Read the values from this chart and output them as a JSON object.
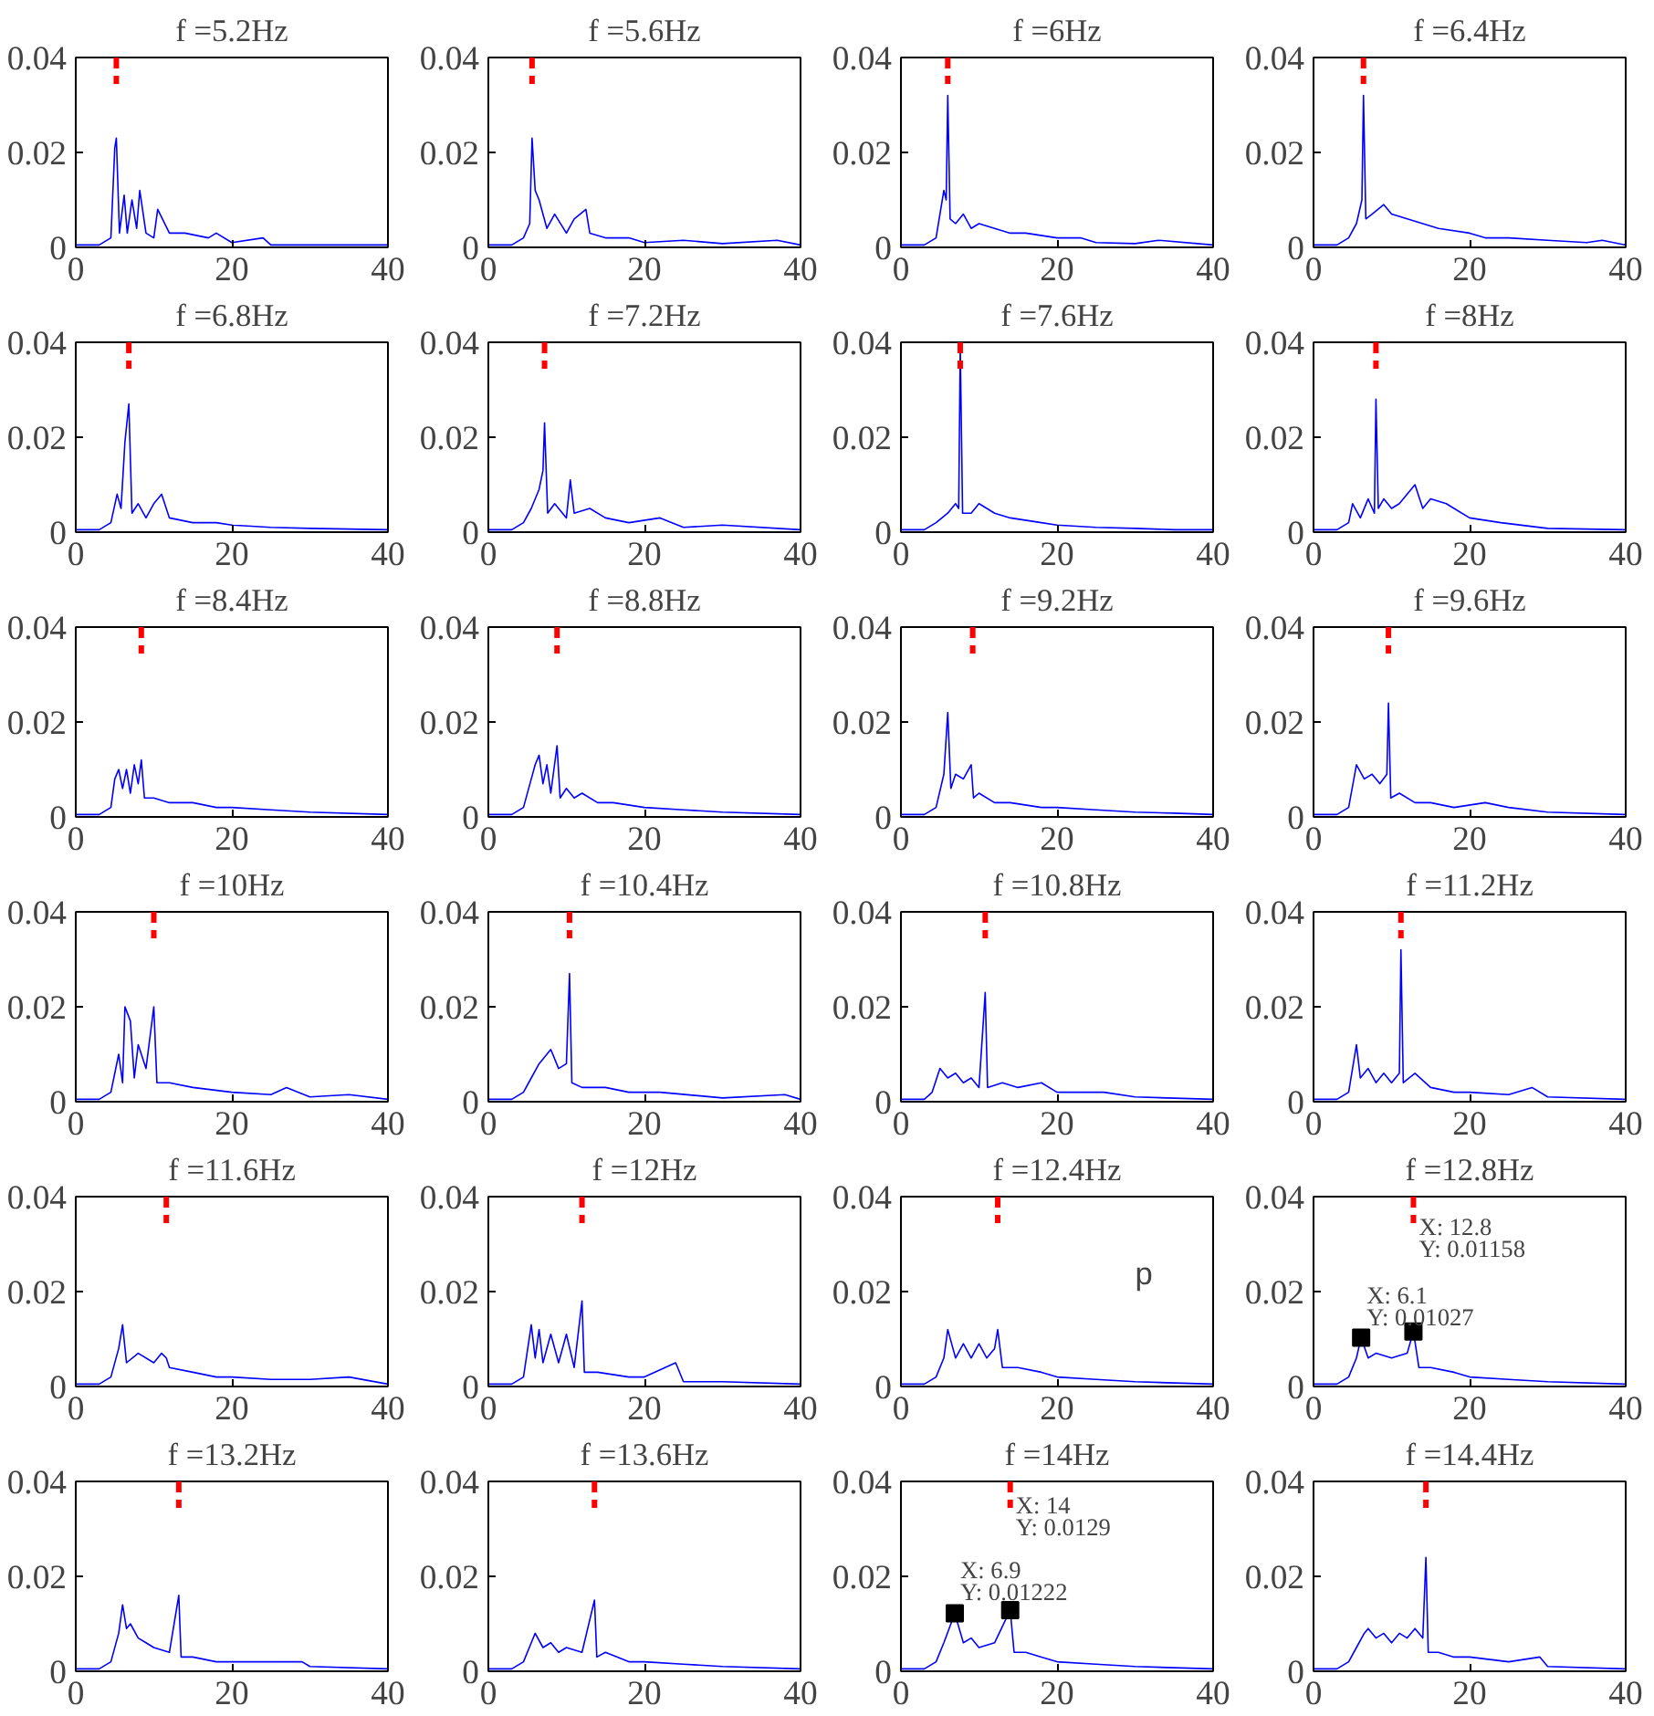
{
  "chart_data": [
    {
      "type": "line",
      "title": "f =5.2Hz",
      "x": [
        0,
        3,
        4.5,
        5,
        5.2,
        5.6,
        6.2,
        6.6,
        7.2,
        7.8,
        8.2,
        9,
        10,
        10.5,
        12,
        14,
        17,
        18,
        20,
        24,
        25,
        30,
        40
      ],
      "series": [
        {
          "color": "#0000ff",
          "values": [
            0.0005,
            0.0005,
            0.002,
            0.021,
            0.023,
            0.003,
            0.011,
            0.003,
            0.01,
            0.004,
            0.012,
            0.003,
            0.002,
            0.008,
            0.003,
            0.003,
            0.002,
            0.003,
            0.001,
            0.002,
            0.0005,
            0.0005,
            0.0005
          ]
        }
      ],
      "xlim": [
        0,
        40
      ],
      "ylim": [
        0,
        0.04
      ],
      "xticks": [
        0,
        20,
        40
      ],
      "yticks": [
        0,
        0.02,
        0.04
      ],
      "ref_lines": [
        {
          "axis": "x",
          "value": 5.2,
          "color": "#ff0000",
          "line_style": "dashed"
        }
      ]
    },
    {
      "type": "line",
      "title": "f =5.6Hz",
      "x": [
        0,
        3,
        4.5,
        5.3,
        5.6,
        6,
        6.5,
        7.5,
        8.5,
        10,
        11,
        12.5,
        13,
        15,
        18,
        20,
        25,
        30,
        37,
        40
      ],
      "series": [
        {
          "color": "#0000ff",
          "values": [
            0.0005,
            0.0005,
            0.002,
            0.005,
            0.023,
            0.012,
            0.01,
            0.004,
            0.007,
            0.003,
            0.006,
            0.008,
            0.003,
            0.002,
            0.002,
            0.001,
            0.0015,
            0.0008,
            0.0015,
            0.0005
          ]
        }
      ],
      "xlim": [
        0,
        40
      ],
      "ylim": [
        0,
        0.04
      ],
      "xticks": [
        0,
        20,
        40
      ],
      "yticks": [
        0,
        0.02,
        0.04
      ],
      "ref_lines": [
        {
          "axis": "x",
          "value": 5.6,
          "color": "#ff0000",
          "line_style": "dashed"
        }
      ]
    },
    {
      "type": "line",
      "title": "f =6Hz",
      "x": [
        0,
        3,
        4.5,
        5.5,
        5.8,
        6,
        6.3,
        7,
        8,
        9,
        10,
        12,
        14,
        16,
        20,
        23,
        25,
        30,
        33,
        40
      ],
      "series": [
        {
          "color": "#0000ff",
          "values": [
            0.0005,
            0.0005,
            0.002,
            0.012,
            0.01,
            0.032,
            0.006,
            0.005,
            0.007,
            0.004,
            0.005,
            0.004,
            0.003,
            0.003,
            0.002,
            0.002,
            0.001,
            0.0008,
            0.0015,
            0.0005
          ]
        }
      ],
      "xlim": [
        0,
        40
      ],
      "ylim": [
        0,
        0.04
      ],
      "xticks": [
        0,
        20,
        40
      ],
      "yticks": [
        0,
        0.02,
        0.04
      ],
      "ref_lines": [
        {
          "axis": "x",
          "value": 6,
          "color": "#ff0000",
          "line_style": "dashed"
        }
      ]
    },
    {
      "type": "line",
      "title": "f =6.4Hz",
      "x": [
        0,
        3,
        4.5,
        5.5,
        6.2,
        6.4,
        6.7,
        7.5,
        9,
        10,
        12,
        14,
        16,
        20,
        22,
        25,
        30,
        35,
        37,
        40
      ],
      "series": [
        {
          "color": "#0000ff",
          "values": [
            0.0005,
            0.0005,
            0.002,
            0.005,
            0.01,
            0.032,
            0.006,
            0.007,
            0.009,
            0.007,
            0.006,
            0.005,
            0.004,
            0.003,
            0.002,
            0.002,
            0.0015,
            0.001,
            0.0015,
            0.0005
          ]
        }
      ],
      "xlim": [
        0,
        40
      ],
      "ylim": [
        0,
        0.04
      ],
      "xticks": [
        0,
        20,
        40
      ],
      "yticks": [
        0,
        0.02,
        0.04
      ],
      "ref_lines": [
        {
          "axis": "x",
          "value": 6.4,
          "color": "#ff0000",
          "line_style": "dashed"
        }
      ]
    },
    {
      "type": "line",
      "title": "f =6.8Hz",
      "x": [
        0,
        3,
        4.5,
        5.3,
        5.8,
        6.3,
        6.8,
        7.2,
        8,
        9,
        10,
        11,
        12,
        15,
        18,
        20,
        25,
        30,
        40
      ],
      "series": [
        {
          "color": "#0000ff",
          "values": [
            0.0005,
            0.0005,
            0.002,
            0.008,
            0.005,
            0.019,
            0.027,
            0.004,
            0.006,
            0.003,
            0.006,
            0.008,
            0.003,
            0.002,
            0.002,
            0.0015,
            0.001,
            0.0008,
            0.0005
          ]
        }
      ],
      "xlim": [
        0,
        40
      ],
      "ylim": [
        0,
        0.04
      ],
      "xticks": [
        0,
        20,
        40
      ],
      "yticks": [
        0,
        0.02,
        0.04
      ],
      "ref_lines": [
        {
          "axis": "x",
          "value": 6.8,
          "color": "#ff0000",
          "line_style": "dashed"
        }
      ]
    },
    {
      "type": "line",
      "title": "f =7.2Hz",
      "x": [
        0,
        3,
        4.5,
        5.5,
        6.5,
        7,
        7.2,
        7.6,
        8.5,
        10,
        10.5,
        11,
        13,
        15,
        18,
        22,
        25,
        30,
        40
      ],
      "series": [
        {
          "color": "#0000ff",
          "values": [
            0.0005,
            0.0005,
            0.002,
            0.005,
            0.009,
            0.013,
            0.023,
            0.004,
            0.006,
            0.003,
            0.011,
            0.004,
            0.005,
            0.003,
            0.002,
            0.003,
            0.001,
            0.0015,
            0.0005
          ]
        }
      ],
      "xlim": [
        0,
        40
      ],
      "ylim": [
        0,
        0.04
      ],
      "xticks": [
        0,
        20,
        40
      ],
      "yticks": [
        0,
        0.02,
        0.04
      ],
      "ref_lines": [
        {
          "axis": "x",
          "value": 7.2,
          "color": "#ff0000",
          "line_style": "dashed"
        }
      ]
    },
    {
      "type": "line",
      "title": "f =7.6Hz",
      "x": [
        0,
        3,
        4.5,
        6,
        7,
        7.4,
        7.6,
        7.9,
        9,
        10,
        12,
        14,
        18,
        20,
        25,
        30,
        35,
        40
      ],
      "series": [
        {
          "color": "#0000ff",
          "values": [
            0.0005,
            0.0005,
            0.002,
            0.004,
            0.006,
            0.005,
            0.039,
            0.004,
            0.004,
            0.006,
            0.004,
            0.003,
            0.002,
            0.0015,
            0.001,
            0.0008,
            0.0005,
            0.0005
          ]
        }
      ],
      "xlim": [
        0,
        40
      ],
      "ylim": [
        0,
        0.04
      ],
      "xticks": [
        0,
        20,
        40
      ],
      "yticks": [
        0,
        0.02,
        0.04
      ],
      "ref_lines": [
        {
          "axis": "x",
          "value": 7.6,
          "color": "#ff0000",
          "line_style": "dashed"
        }
      ]
    },
    {
      "type": "line",
      "title": "f =8Hz",
      "x": [
        0,
        3,
        4.5,
        5,
        6,
        7,
        7.8,
        8,
        8.3,
        9,
        10,
        11,
        13,
        14,
        15,
        17,
        18,
        20,
        24,
        30,
        40
      ],
      "series": [
        {
          "color": "#0000ff",
          "values": [
            0.0005,
            0.0005,
            0.002,
            0.006,
            0.003,
            0.007,
            0.004,
            0.028,
            0.005,
            0.007,
            0.005,
            0.006,
            0.01,
            0.005,
            0.007,
            0.006,
            0.005,
            0.003,
            0.002,
            0.0008,
            0.0005
          ]
        }
      ],
      "xlim": [
        0,
        40
      ],
      "ylim": [
        0,
        0.04
      ],
      "xticks": [
        0,
        20,
        40
      ],
      "yticks": [
        0,
        0.02,
        0.04
      ],
      "ref_lines": [
        {
          "axis": "x",
          "value": 8,
          "color": "#ff0000",
          "line_style": "dashed"
        }
      ]
    },
    {
      "type": "line",
      "title": "f =8.4Hz",
      "x": [
        0,
        3,
        4.5,
        5,
        5.5,
        6,
        6.5,
        7,
        7.5,
        8,
        8.4,
        8.8,
        10,
        12,
        15,
        18,
        20,
        25,
        30,
        40
      ],
      "series": [
        {
          "color": "#0000ff",
          "values": [
            0.0005,
            0.0005,
            0.002,
            0.008,
            0.01,
            0.006,
            0.01,
            0.005,
            0.011,
            0.007,
            0.012,
            0.004,
            0.004,
            0.003,
            0.003,
            0.002,
            0.002,
            0.0015,
            0.001,
            0.0005
          ]
        }
      ],
      "xlim": [
        0,
        40
      ],
      "ylim": [
        0,
        0.04
      ],
      "xticks": [
        0,
        20,
        40
      ],
      "yticks": [
        0,
        0.02,
        0.04
      ],
      "ref_lines": [
        {
          "axis": "x",
          "value": 8.4,
          "color": "#ff0000",
          "line_style": "dashed"
        }
      ]
    },
    {
      "type": "line",
      "title": "f =8.8Hz",
      "x": [
        0,
        3,
        4.5,
        5.5,
        6,
        6.5,
        7,
        7.5,
        8,
        8.8,
        9.2,
        10,
        11,
        12,
        14,
        16,
        20,
        25,
        30,
        40
      ],
      "series": [
        {
          "color": "#0000ff",
          "values": [
            0.0005,
            0.0005,
            0.002,
            0.008,
            0.011,
            0.013,
            0.007,
            0.011,
            0.005,
            0.015,
            0.004,
            0.006,
            0.004,
            0.005,
            0.003,
            0.003,
            0.002,
            0.0015,
            0.001,
            0.0005
          ]
        }
      ],
      "xlim": [
        0,
        40
      ],
      "ylim": [
        0,
        0.04
      ],
      "xticks": [
        0,
        20,
        40
      ],
      "yticks": [
        0,
        0.02,
        0.04
      ],
      "ref_lines": [
        {
          "axis": "x",
          "value": 8.8,
          "color": "#ff0000",
          "line_style": "dashed"
        }
      ]
    },
    {
      "type": "line",
      "title": "f =9.2Hz",
      "x": [
        0,
        3,
        4.5,
        5.5,
        6,
        6.4,
        7,
        8,
        9,
        9.3,
        10,
        12,
        14,
        18,
        20,
        25,
        30,
        35,
        40
      ],
      "series": [
        {
          "color": "#0000ff",
          "values": [
            0.0005,
            0.0005,
            0.002,
            0.009,
            0.022,
            0.006,
            0.009,
            0.008,
            0.011,
            0.004,
            0.005,
            0.003,
            0.003,
            0.002,
            0.002,
            0.0015,
            0.001,
            0.0008,
            0.0005
          ]
        }
      ],
      "xlim": [
        0,
        40
      ],
      "ylim": [
        0,
        0.04
      ],
      "xticks": [
        0,
        20,
        40
      ],
      "yticks": [
        0,
        0.02,
        0.04
      ],
      "ref_lines": [
        {
          "axis": "x",
          "value": 9.2,
          "color": "#ff0000",
          "line_style": "dashed"
        }
      ]
    },
    {
      "type": "line",
      "title": "f =9.6Hz",
      "x": [
        0,
        3,
        4.5,
        5.5,
        6.5,
        7.5,
        8.5,
        9.4,
        9.6,
        9.9,
        11,
        13,
        15,
        18,
        22,
        25,
        30,
        40
      ],
      "series": [
        {
          "color": "#0000ff",
          "values": [
            0.0005,
            0.0005,
            0.002,
            0.011,
            0.008,
            0.009,
            0.007,
            0.009,
            0.024,
            0.004,
            0.005,
            0.003,
            0.003,
            0.002,
            0.003,
            0.002,
            0.001,
            0.0005
          ]
        }
      ],
      "xlim": [
        0,
        40
      ],
      "ylim": [
        0,
        0.04
      ],
      "xticks": [
        0,
        20,
        40
      ],
      "yticks": [
        0,
        0.02,
        0.04
      ],
      "ref_lines": [
        {
          "axis": "x",
          "value": 9.6,
          "color": "#ff0000",
          "line_style": "dashed"
        }
      ]
    },
    {
      "type": "line",
      "title": "f =10Hz",
      "x": [
        0,
        3,
        4.5,
        5.5,
        6,
        6.3,
        7,
        7.5,
        8,
        9,
        10,
        10.4,
        12,
        15,
        20,
        25,
        27,
        30,
        35,
        40
      ],
      "series": [
        {
          "color": "#0000ff",
          "values": [
            0.0005,
            0.0005,
            0.002,
            0.01,
            0.004,
            0.02,
            0.017,
            0.005,
            0.012,
            0.007,
            0.02,
            0.004,
            0.004,
            0.003,
            0.002,
            0.0015,
            0.003,
            0.001,
            0.0015,
            0.0005
          ]
        }
      ],
      "xlim": [
        0,
        40
      ],
      "ylim": [
        0,
        0.04
      ],
      "xticks": [
        0,
        20,
        40
      ],
      "yticks": [
        0,
        0.02,
        0.04
      ],
      "ref_lines": [
        {
          "axis": "x",
          "value": 10,
          "color": "#ff0000",
          "line_style": "dashed"
        }
      ]
    },
    {
      "type": "line",
      "title": "f =10.4Hz",
      "x": [
        0,
        3,
        4.5,
        5.5,
        6.5,
        7.5,
        8,
        9,
        10,
        10.4,
        10.7,
        12,
        15,
        18,
        22,
        30,
        38,
        40
      ],
      "series": [
        {
          "color": "#0000ff",
          "values": [
            0.0005,
            0.0005,
            0.002,
            0.005,
            0.008,
            0.01,
            0.011,
            0.007,
            0.008,
            0.027,
            0.004,
            0.003,
            0.003,
            0.002,
            0.002,
            0.0008,
            0.0015,
            0.0005
          ]
        }
      ],
      "xlim": [
        0,
        40
      ],
      "ylim": [
        0,
        0.04
      ],
      "xticks": [
        0,
        20,
        40
      ],
      "yticks": [
        0,
        0.02,
        0.04
      ],
      "ref_lines": [
        {
          "axis": "x",
          "value": 10.4,
          "color": "#ff0000",
          "line_style": "dashed"
        }
      ]
    },
    {
      "type": "line",
      "title": "f =10.8Hz",
      "x": [
        0,
        3,
        4,
        5,
        6,
        7,
        8,
        9,
        10,
        10.8,
        11.1,
        13,
        15,
        18,
        20,
        26,
        30,
        40
      ],
      "series": [
        {
          "color": "#0000ff",
          "values": [
            0.0005,
            0.0005,
            0.002,
            0.007,
            0.005,
            0.006,
            0.004,
            0.005,
            0.003,
            0.023,
            0.003,
            0.004,
            0.003,
            0.004,
            0.002,
            0.002,
            0.001,
            0.0005
          ]
        }
      ],
      "xlim": [
        0,
        40
      ],
      "ylim": [
        0,
        0.04
      ],
      "xticks": [
        0,
        20,
        40
      ],
      "yticks": [
        0,
        0.02,
        0.04
      ],
      "ref_lines": [
        {
          "axis": "x",
          "value": 10.8,
          "color": "#ff0000",
          "line_style": "dashed"
        }
      ]
    },
    {
      "type": "line",
      "title": "f =11.2Hz",
      "x": [
        0,
        3,
        4.5,
        5.5,
        6,
        7,
        8,
        9,
        10,
        11,
        11.2,
        11.5,
        13,
        15,
        18,
        20,
        25,
        28,
        30,
        40
      ],
      "series": [
        {
          "color": "#0000ff",
          "values": [
            0.0005,
            0.0005,
            0.002,
            0.012,
            0.005,
            0.007,
            0.004,
            0.006,
            0.004,
            0.006,
            0.032,
            0.004,
            0.006,
            0.003,
            0.002,
            0.002,
            0.0015,
            0.003,
            0.001,
            0.0005
          ]
        }
      ],
      "xlim": [
        0,
        40
      ],
      "ylim": [
        0,
        0.04
      ],
      "xticks": [
        0,
        20,
        40
      ],
      "yticks": [
        0,
        0.02,
        0.04
      ],
      "ref_lines": [
        {
          "axis": "x",
          "value": 11.2,
          "color": "#ff0000",
          "line_style": "dashed"
        }
      ]
    },
    {
      "type": "line",
      "title": "f =11.6Hz",
      "x": [
        0,
        3,
        4.5,
        5.5,
        6,
        6.5,
        8,
        10,
        11,
        11.6,
        12,
        15,
        18,
        20,
        25,
        30,
        35,
        40
      ],
      "series": [
        {
          "color": "#0000ff",
          "values": [
            0.0005,
            0.0005,
            0.002,
            0.008,
            0.013,
            0.005,
            0.007,
            0.005,
            0.007,
            0.006,
            0.004,
            0.003,
            0.002,
            0.002,
            0.0015,
            0.0015,
            0.002,
            0.0005
          ]
        }
      ],
      "xlim": [
        0,
        40
      ],
      "ylim": [
        0,
        0.04
      ],
      "xticks": [
        0,
        20,
        40
      ],
      "yticks": [
        0,
        0.02,
        0.04
      ],
      "ref_lines": [
        {
          "axis": "x",
          "value": 11.6,
          "color": "#ff0000",
          "line_style": "dashed"
        }
      ]
    },
    {
      "type": "line",
      "title": "f =12Hz",
      "x": [
        0,
        3,
        4.5,
        5.5,
        6,
        6.5,
        7,
        8,
        9,
        10,
        11,
        12,
        12.3,
        14,
        18,
        20,
        24,
        25,
        30,
        40
      ],
      "series": [
        {
          "color": "#0000ff",
          "values": [
            0.0005,
            0.0005,
            0.002,
            0.013,
            0.006,
            0.012,
            0.005,
            0.011,
            0.005,
            0.011,
            0.004,
            0.018,
            0.003,
            0.003,
            0.002,
            0.002,
            0.005,
            0.001,
            0.001,
            0.0005
          ]
        }
      ],
      "xlim": [
        0,
        40
      ],
      "ylim": [
        0,
        0.04
      ],
      "xticks": [
        0,
        20,
        40
      ],
      "yticks": [
        0,
        0.02,
        0.04
      ],
      "ref_lines": [
        {
          "axis": "x",
          "value": 12,
          "color": "#ff0000",
          "line_style": "dashed"
        }
      ]
    },
    {
      "type": "line",
      "title": "f =12.4Hz",
      "x": [
        0,
        3,
        4.5,
        5.5,
        6,
        7,
        8,
        9,
        10,
        11,
        12,
        12.4,
        13,
        15,
        18,
        20,
        25,
        30,
        40
      ],
      "series": [
        {
          "color": "#0000ff",
          "values": [
            0.0005,
            0.0005,
            0.002,
            0.006,
            0.012,
            0.006,
            0.009,
            0.006,
            0.009,
            0.006,
            0.008,
            0.012,
            0.004,
            0.004,
            0.003,
            0.002,
            0.0015,
            0.001,
            0.0005
          ]
        }
      ],
      "xlim": [
        0,
        40
      ],
      "ylim": [
        0,
        0.04
      ],
      "xticks": [
        0,
        20,
        40
      ],
      "yticks": [
        0,
        0.02,
        0.04
      ],
      "ref_lines": [
        {
          "axis": "x",
          "value": 12.4,
          "color": "#ff0000",
          "line_style": "dashed"
        }
      ],
      "annotations": [
        "p"
      ]
    },
    {
      "type": "line",
      "title": "f =12.8Hz",
      "x": [
        0,
        3,
        4.5,
        5.5,
        6.1,
        7,
        8,
        10,
        12,
        12.8,
        13.5,
        15,
        18,
        20,
        25,
        30,
        40
      ],
      "series": [
        {
          "color": "#0000ff",
          "values": [
            0.0005,
            0.0005,
            0.002,
            0.006,
            0.0103,
            0.006,
            0.007,
            0.006,
            0.007,
            0.0116,
            0.004,
            0.004,
            0.003,
            0.002,
            0.0015,
            0.001,
            0.0005
          ]
        }
      ],
      "xlim": [
        0,
        40
      ],
      "ylim": [
        0,
        0.04
      ],
      "xticks": [
        0,
        20,
        40
      ],
      "yticks": [
        0,
        0.02,
        0.04
      ],
      "ref_lines": [
        {
          "axis": "x",
          "value": 12.8,
          "color": "#ff0000",
          "line_style": "dashed"
        }
      ],
      "annotations": [
        {
          "text": "X: 6.1\nY: 0.01027",
          "x": 6.1,
          "y": 0.01027
        },
        {
          "text": "X: 12.8\nY: 0.01158",
          "x": 12.8,
          "y": 0.01158
        }
      ]
    },
    {
      "type": "line",
      "title": "f =13.2Hz",
      "x": [
        0,
        3,
        4.5,
        5.5,
        6,
        6.5,
        7,
        8,
        9,
        10,
        12,
        13.2,
        13.5,
        15,
        18,
        20,
        26,
        29,
        30,
        40
      ],
      "series": [
        {
          "color": "#0000ff",
          "values": [
            0.0005,
            0.0005,
            0.002,
            0.008,
            0.014,
            0.009,
            0.01,
            0.007,
            0.006,
            0.005,
            0.004,
            0.016,
            0.003,
            0.003,
            0.002,
            0.002,
            0.002,
            0.002,
            0.001,
            0.0005
          ]
        }
      ],
      "xlim": [
        0,
        40
      ],
      "ylim": [
        0,
        0.04
      ],
      "xticks": [
        0,
        20,
        40
      ],
      "yticks": [
        0,
        0.02,
        0.04
      ],
      "ref_lines": [
        {
          "axis": "x",
          "value": 13.2,
          "color": "#ff0000",
          "line_style": "dashed"
        }
      ]
    },
    {
      "type": "line",
      "title": "f =13.6Hz",
      "x": [
        0,
        3,
        4.5,
        5.5,
        6,
        7,
        8,
        9,
        10,
        12,
        13.6,
        13.9,
        15,
        18,
        20,
        25,
        30,
        40
      ],
      "series": [
        {
          "color": "#0000ff",
          "values": [
            0.0005,
            0.0005,
            0.002,
            0.006,
            0.008,
            0.005,
            0.006,
            0.004,
            0.005,
            0.004,
            0.015,
            0.003,
            0.004,
            0.002,
            0.002,
            0.0015,
            0.001,
            0.0005
          ]
        }
      ],
      "xlim": [
        0,
        40
      ],
      "ylim": [
        0,
        0.04
      ],
      "xticks": [
        0,
        20,
        40
      ],
      "yticks": [
        0,
        0.02,
        0.04
      ],
      "ref_lines": [
        {
          "axis": "x",
          "value": 13.6,
          "color": "#ff0000",
          "line_style": "dashed"
        }
      ]
    },
    {
      "type": "line",
      "title": "f =14Hz",
      "x": [
        0,
        3,
        4.5,
        5.5,
        6.9,
        8,
        9,
        10,
        12,
        14,
        14.5,
        16,
        18,
        20,
        25,
        30,
        40
      ],
      "series": [
        {
          "color": "#0000ff",
          "values": [
            0.0005,
            0.0005,
            0.002,
            0.006,
            0.0122,
            0.006,
            0.007,
            0.005,
            0.006,
            0.0129,
            0.004,
            0.004,
            0.003,
            0.002,
            0.0015,
            0.001,
            0.0005
          ]
        }
      ],
      "xlim": [
        0,
        40
      ],
      "ylim": [
        0,
        0.04
      ],
      "xticks": [
        0,
        20,
        40
      ],
      "yticks": [
        0,
        0.02,
        0.04
      ],
      "ref_lines": [
        {
          "axis": "x",
          "value": 14,
          "color": "#ff0000",
          "line_style": "dashed"
        }
      ],
      "annotations": [
        {
          "text": "X: 6.9\nY: 0.01222",
          "x": 6.9,
          "y": 0.01222
        },
        {
          "text": "X: 14\nY: 0.0129",
          "x": 14,
          "y": 0.0129
        }
      ]
    },
    {
      "type": "line",
      "title": "f =14.4Hz",
      "x": [
        0,
        3,
        4.5,
        5.5,
        6.5,
        7,
        8,
        9,
        10,
        11,
        12,
        13,
        14,
        14.4,
        14.7,
        16,
        18,
        20,
        25,
        29,
        30,
        40
      ],
      "series": [
        {
          "color": "#0000ff",
          "values": [
            0.0005,
            0.0005,
            0.002,
            0.005,
            0.008,
            0.009,
            0.007,
            0.008,
            0.006,
            0.008,
            0.007,
            0.009,
            0.007,
            0.024,
            0.004,
            0.004,
            0.003,
            0.003,
            0.002,
            0.003,
            0.001,
            0.0005
          ]
        }
      ],
      "xlim": [
        0,
        40
      ],
      "ylim": [
        0,
        0.04
      ],
      "xticks": [
        0,
        20,
        40
      ],
      "yticks": [
        0,
        0.02,
        0.04
      ],
      "ref_lines": [
        {
          "axis": "x",
          "value": 14.4,
          "color": "#ff0000",
          "line_style": "dashed"
        }
      ]
    }
  ]
}
